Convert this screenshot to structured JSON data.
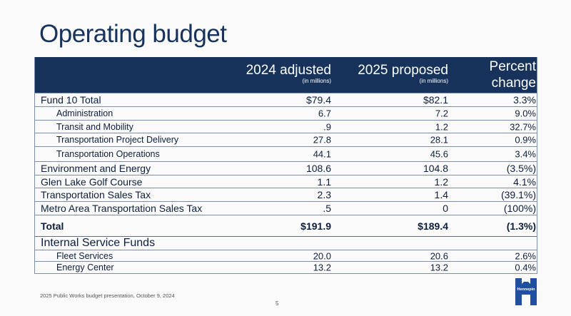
{
  "slide": {
    "title": "Operating budget",
    "footer": "2025 Public Works budget presentation, October 9, 2024",
    "page_number": "5",
    "logo_text": "Hennepin",
    "accent_color": "#17335c"
  },
  "table": {
    "headers": [
      {
        "label": "2024 adjusted",
        "sub": "(in millions)"
      },
      {
        "label": "2025 proposed",
        "sub": "(in millions)"
      },
      {
        "label_line1": "Percent",
        "label_line2": "change"
      }
    ],
    "rows": [
      {
        "label": "Fund 10 Total",
        "v2024": "$79.4",
        "v2025": "$82.1",
        "pct": "3.3%"
      },
      {
        "label": "Administration",
        "v2024": "6.7",
        "v2025": "7.2",
        "pct": "9.0%"
      },
      {
        "label": "Transit and Mobility",
        "v2024": ".9",
        "v2025": "1.2",
        "pct": "32.7%"
      },
      {
        "label": "Transportation Project Delivery",
        "v2024": "27.8",
        "v2025": "28.1",
        "pct": "0.9%"
      },
      {
        "label": "Transportation Operations",
        "v2024": "44.1",
        "v2025": "45.6",
        "pct": "3.4%"
      },
      {
        "label": "Environment and Energy",
        "v2024": "108.6",
        "v2025": "104.8",
        "pct": "(3.5%)"
      },
      {
        "label": "Glen Lake Golf Course",
        "v2024": "1.1",
        "v2025": "1.2",
        "pct": "4.1%"
      },
      {
        "label": "Transportation Sales Tax",
        "v2024": "2.3",
        "v2025": "1.4",
        "pct": "(39.1%)"
      },
      {
        "label": "Metro Area Transportation Sales Tax",
        "v2024": ".5",
        "v2025": "0",
        "pct": "(100%)"
      },
      {
        "label": "Total",
        "v2024": "$191.9",
        "v2025": "$189.4",
        "pct": "(1.3%)"
      },
      {
        "label": "Internal Service Funds",
        "v2024": "",
        "v2025": "",
        "pct": ""
      },
      {
        "label": "Fleet Services",
        "v2024": "20.0",
        "v2025": "20.6",
        "pct": "2.6%"
      },
      {
        "label": "Energy Center",
        "v2024": "13.2",
        "v2025": "13.2",
        "pct": "0.4%"
      }
    ]
  }
}
